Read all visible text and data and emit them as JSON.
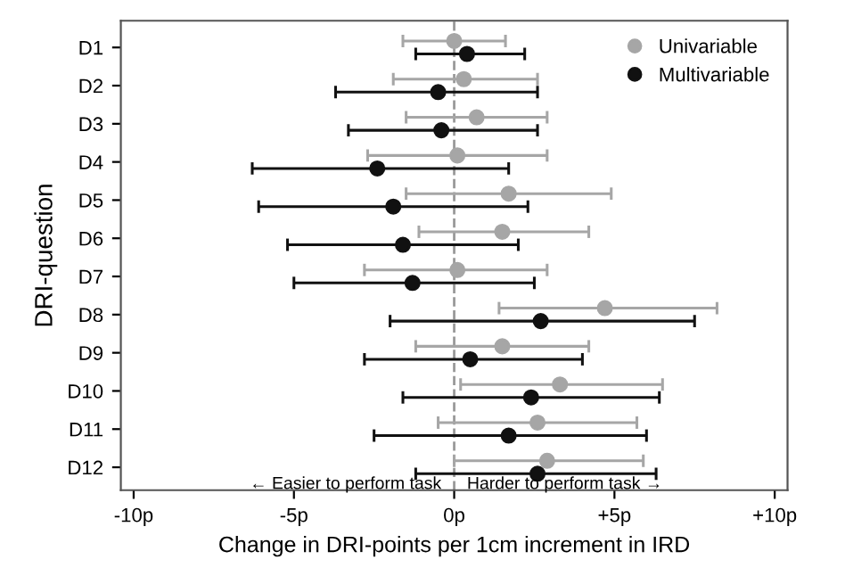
{
  "chart_data": {
    "type": "scatter",
    "orientation": "horizontal",
    "xlabel": "Change in DRI-points per 1cm increment in IRD",
    "ylabel": "DRI-question",
    "categories": [
      "D1",
      "D2",
      "D3",
      "D4",
      "D5",
      "D6",
      "D7",
      "D8",
      "D9",
      "D10",
      "D11",
      "D12"
    ],
    "series": [
      {
        "name": "Univariable",
        "color": "#a6a6a6",
        "values": [
          0.0,
          0.3,
          0.7,
          0.1,
          1.7,
          1.5,
          0.1,
          4.7,
          1.5,
          3.3,
          2.6,
          2.9
        ],
        "errors": [
          [
            -1.6,
            1.6
          ],
          [
            -1.9,
            2.6
          ],
          [
            -1.5,
            2.9
          ],
          [
            -2.7,
            2.9
          ],
          [
            -1.5,
            4.9
          ],
          [
            -1.1,
            4.2
          ],
          [
            -2.8,
            2.9
          ],
          [
            1.4,
            8.2
          ],
          [
            -1.2,
            4.2
          ],
          [
            0.2,
            6.5
          ],
          [
            -0.5,
            5.7
          ],
          [
            0.0,
            5.9
          ]
        ]
      },
      {
        "name": "Multivariable",
        "color": "#111111",
        "values": [
          0.4,
          -0.5,
          -0.4,
          -2.4,
          -1.9,
          -1.6,
          -1.3,
          2.7,
          0.5,
          2.4,
          1.7,
          2.6
        ],
        "errors": [
          [
            -1.2,
            2.2
          ],
          [
            -3.7,
            2.6
          ],
          [
            -3.3,
            2.6
          ],
          [
            -6.3,
            1.7
          ],
          [
            -6.1,
            2.3
          ],
          [
            -5.2,
            2.0
          ],
          [
            -5.0,
            2.5
          ],
          [
            -2.0,
            7.5
          ],
          [
            -2.8,
            4.0
          ],
          [
            -1.6,
            6.4
          ],
          [
            -2.5,
            6.0
          ],
          [
            -1.2,
            6.3
          ]
        ]
      }
    ],
    "xlim": [
      -10.4,
      10.4
    ],
    "xticks": [
      {
        "value": -10,
        "label": "-10p"
      },
      {
        "value": -5,
        "label": "-5p"
      },
      {
        "value": 0,
        "label": "0p"
      },
      {
        "value": 5,
        "label": "+5p"
      },
      {
        "value": 10,
        "label": "+10p"
      }
    ],
    "ref_lines": [
      {
        "axis": "x",
        "value": 0,
        "color": "#999999",
        "line_style": "dashed"
      }
    ],
    "annotations": [
      "← Easier to perform task",
      "Harder to perform task →"
    ],
    "marker": "circle",
    "legend": "top right",
    "grid": false
  }
}
